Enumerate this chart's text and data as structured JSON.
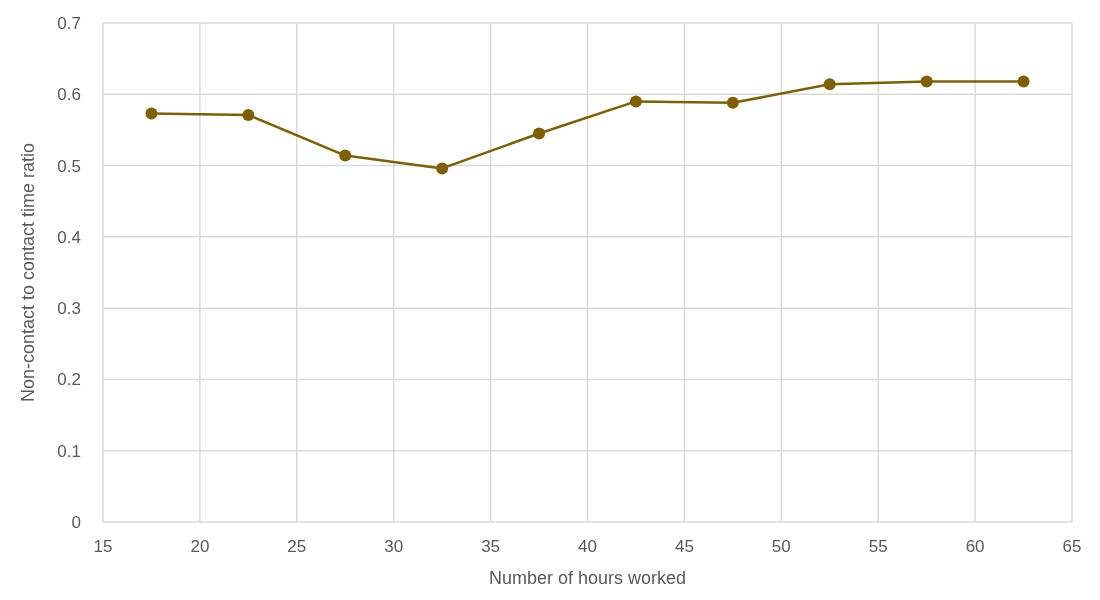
{
  "chart_data": {
    "type": "line",
    "xlabel": "Number of hours worked",
    "ylabel": "Non-contact to contact time ratio",
    "x": [
      17.5,
      22.5,
      27.5,
      32.5,
      37.5,
      42.5,
      47.5,
      52.5,
      57.5,
      62.5
    ],
    "series": [
      {
        "color": "#7f6000",
        "values": [
          0.573,
          0.571,
          0.514,
          0.496,
          0.545,
          0.59,
          0.588,
          0.614,
          0.618,
          0.618
        ]
      }
    ],
    "xlim": [
      15,
      65
    ],
    "xticks": [
      15,
      20,
      25,
      30,
      35,
      40,
      45,
      50,
      55,
      60,
      65
    ],
    "ylim": [
      0,
      0.7
    ],
    "yticks": [
      {
        "value": 0,
        "label": "0"
      },
      {
        "value": 0.1,
        "label": "0.1"
      },
      {
        "value": 0.2,
        "label": "0.2"
      },
      {
        "value": 0.3,
        "label": "0.3"
      },
      {
        "value": 0.4,
        "label": "0.4"
      },
      {
        "value": 0.5,
        "label": "0.5"
      },
      {
        "value": 0.6,
        "label": "0.6"
      },
      {
        "value": 0.7,
        "label": "0.7"
      }
    ],
    "grid": true,
    "marker": "circle",
    "line_style": "solid"
  }
}
